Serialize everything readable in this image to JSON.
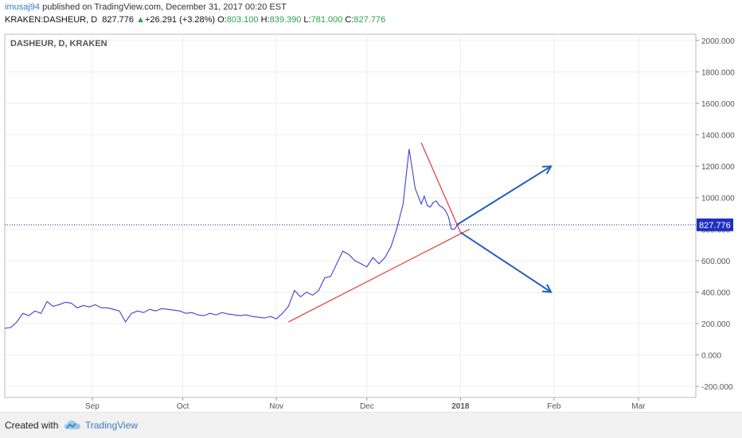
{
  "header": {
    "user": "imusaj94",
    "published_text": " published on TradingView.com, December 31, 2017 00:20 EST"
  },
  "ticker": {
    "symbol": "KRAKEN:DASHEUR, D",
    "last": "827.776",
    "change_arrow": "▲",
    "change": "+26.291 (+3.28%)",
    "o_label": "O:",
    "o_value": "803.100",
    "h_label": "H:",
    "h_value": "839.390",
    "l_label": "L:",
    "l_value": "781.000",
    "c_label": "C:",
    "c_value": "827.776"
  },
  "footer": {
    "created_with": "Created with",
    "brand": "TradingView"
  },
  "chart_data": {
    "type": "line",
    "title": "DASHEUR, D, KRAKEN",
    "series_color": "#3f3fcf",
    "x_ticks": [
      "Sep",
      "Oct",
      "Nov",
      "Dec",
      "2018",
      "Feb",
      "Mar"
    ],
    "x_tick_dates": [
      "2017-09-01",
      "2017-10-01",
      "2017-11-01",
      "2017-12-01",
      "2018-01-01",
      "2018-02-01",
      "2018-03-01"
    ],
    "xlim": [
      "2017-08-03",
      "2018-03-20"
    ],
    "y_ticks": [
      "2000.000",
      "1800.000",
      "1600.000",
      "1400.000",
      "1200.000",
      "1000.000",
      "800.000",
      "600.000",
      "400.000",
      "200.000",
      "0.000",
      "-200.000"
    ],
    "ylim": [
      -270,
      2040
    ],
    "grid": true,
    "last_price_label": "827.776",
    "last_price": 827.776,
    "series": [
      {
        "x": [
          "2017-08-03",
          "2017-08-05",
          "2017-08-07",
          "2017-08-09",
          "2017-08-11",
          "2017-08-13",
          "2017-08-15",
          "2017-08-17",
          "2017-08-19",
          "2017-08-21",
          "2017-08-23",
          "2017-08-25",
          "2017-08-27",
          "2017-08-29",
          "2017-08-31",
          "2017-09-02",
          "2017-09-04",
          "2017-09-06",
          "2017-09-08",
          "2017-09-10",
          "2017-09-12",
          "2017-09-14",
          "2017-09-16",
          "2017-09-18",
          "2017-09-20",
          "2017-09-22",
          "2017-09-24",
          "2017-09-26",
          "2017-09-28",
          "2017-09-30",
          "2017-10-02",
          "2017-10-04",
          "2017-10-06",
          "2017-10-08",
          "2017-10-10",
          "2017-10-12",
          "2017-10-14",
          "2017-10-16",
          "2017-10-18",
          "2017-10-20",
          "2017-10-22",
          "2017-10-24",
          "2017-10-26",
          "2017-10-28",
          "2017-10-30",
          "2017-11-01",
          "2017-11-03",
          "2017-11-05",
          "2017-11-07",
          "2017-11-09",
          "2017-11-11",
          "2017-11-13",
          "2017-11-15",
          "2017-11-17",
          "2017-11-19",
          "2017-11-21",
          "2017-11-23",
          "2017-11-25",
          "2017-11-27",
          "2017-11-29",
          "2017-12-01",
          "2017-12-03",
          "2017-12-05",
          "2017-12-07",
          "2017-12-09",
          "2017-12-11",
          "2017-12-13",
          "2017-12-15",
          "2017-12-17",
          "2017-12-19",
          "2017-12-20",
          "2017-12-21",
          "2017-12-22",
          "2017-12-23",
          "2017-12-24",
          "2017-12-25",
          "2017-12-26",
          "2017-12-27",
          "2017-12-28",
          "2017-12-29",
          "2017-12-30",
          "2017-12-31"
        ],
        "y": [
          170,
          175,
          210,
          265,
          250,
          280,
          265,
          340,
          310,
          320,
          335,
          330,
          300,
          315,
          305,
          320,
          300,
          300,
          290,
          280,
          210,
          265,
          280,
          270,
          290,
          280,
          295,
          290,
          285,
          280,
          265,
          270,
          255,
          250,
          265,
          255,
          270,
          260,
          255,
          250,
          255,
          245,
          240,
          235,
          245,
          230,
          265,
          310,
          410,
          370,
          400,
          380,
          410,
          490,
          500,
          580,
          660,
          640,
          600,
          580,
          560,
          620,
          580,
          620,
          690,
          810,
          960,
          1310,
          1060,
          960,
          1010,
          950,
          940,
          970,
          980,
          950,
          940,
          920,
          880,
          800,
          800,
          828
        ]
      }
    ],
    "trendlines": [
      {
        "color": "#e53935",
        "from": [
          "2017-11-05",
          210
        ],
        "to": [
          "2018-01-04",
          800
        ]
      },
      {
        "color": "#e53935",
        "from": [
          "2017-12-19",
          1350
        ],
        "to": [
          "2018-01-01",
          780
        ]
      }
    ],
    "arrows": [
      {
        "color": "#1f5fbf",
        "from": [
          "2017-12-31",
          830
        ],
        "to": [
          "2018-01-31",
          1200
        ]
      },
      {
        "color": "#1f5fbf",
        "from": [
          "2018-01-01",
          780
        ],
        "to": [
          "2018-01-31",
          400
        ]
      }
    ]
  }
}
